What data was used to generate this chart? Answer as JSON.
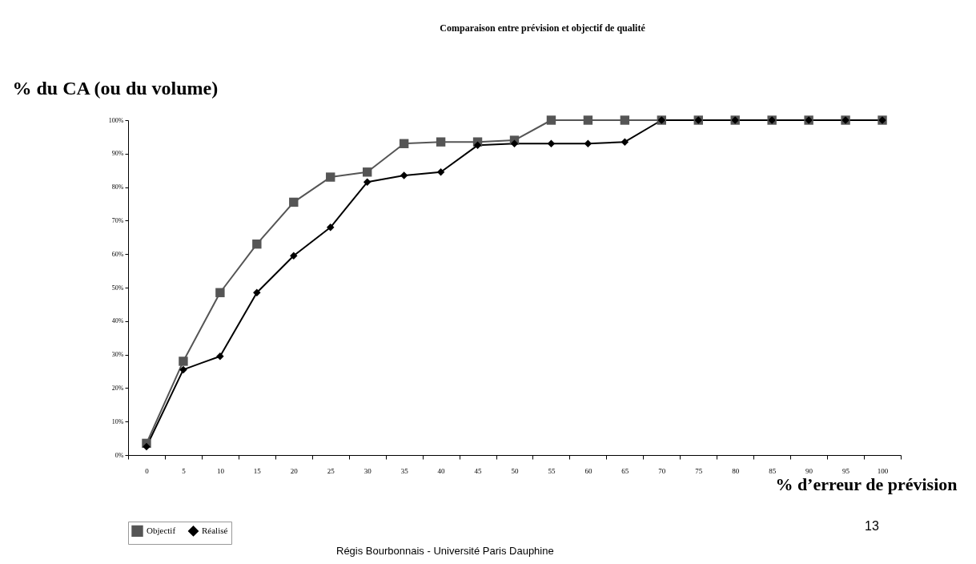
{
  "chart_data": {
    "type": "line",
    "title": "Comparaison entre prévision et objectif de qualité",
    "ylabel": "% du CA (ou du volume)",
    "xlabel": "% d’erreur de prévision",
    "categories": [
      "0",
      "5",
      "10",
      "15",
      "20",
      "25",
      "30",
      "35",
      "40",
      "45",
      "50",
      "55",
      "60",
      "65",
      "70",
      "75",
      "80",
      "85",
      "90",
      "95",
      "100"
    ],
    "series": [
      {
        "name": "Objectif",
        "color": "#555555",
        "marker": "square",
        "values": [
          3.5,
          28,
          48.5,
          63,
          75.5,
          83,
          84.5,
          93,
          93.5,
          93.5,
          94,
          100,
          100,
          100,
          100,
          100,
          100,
          100,
          100,
          100,
          100
        ]
      },
      {
        "name": "Réalisé",
        "color": "#000000",
        "marker": "diamond",
        "values": [
          2.5,
          25.5,
          29.5,
          48.5,
          59.5,
          68,
          81.5,
          83.5,
          84.5,
          92.5,
          93,
          93,
          93,
          93.5,
          100,
          100,
          100,
          100,
          100,
          100,
          100
        ]
      }
    ],
    "ylim": [
      0,
      100
    ],
    "yticks": [
      {
        "value": 0,
        "label": "0%"
      },
      {
        "value": 10,
        "label": "10%"
      },
      {
        "value": 20,
        "label": "20%"
      },
      {
        "value": 30,
        "label": "30%"
      },
      {
        "value": 40,
        "label": "40%"
      },
      {
        "value": 50,
        "label": "50%"
      },
      {
        "value": 60,
        "label": "60%"
      },
      {
        "value": 70,
        "label": "70%"
      },
      {
        "value": 80,
        "label": "80%"
      },
      {
        "value": 90,
        "label": "90%"
      },
      {
        "value": 100,
        "label": "100%"
      }
    ],
    "legend": "bottom",
    "annotations": [
      "Régis Bourbonnais - Université Paris Dauphine",
      "13"
    ]
  }
}
